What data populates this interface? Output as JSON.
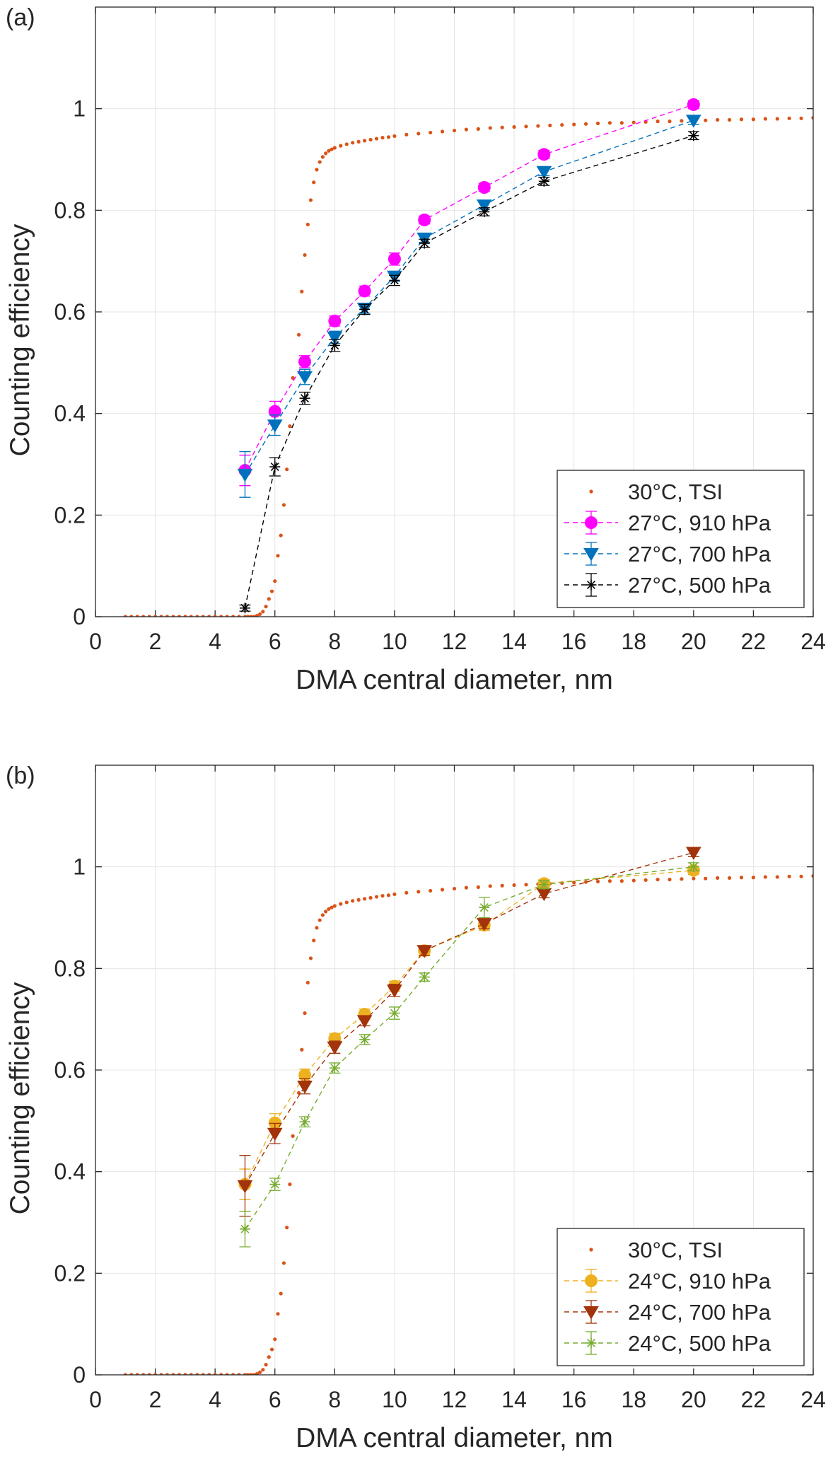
{
  "colors": {
    "tsi": "#D95319",
    "a910": "#FF00FF",
    "a700": "#0072BD",
    "a500": "#000000",
    "b910": "#EDB120",
    "b700": "#A2330B",
    "b500": "#77AC30",
    "grid": "#E6E6E6",
    "axis": "#262626"
  },
  "chart_data": [
    {
      "type": "scatter",
      "panel_label": "(a)",
      "xlabel": "DMA central diameter, nm",
      "ylabel": "Counting efficiency",
      "xlim": [
        0,
        24
      ],
      "ylim": [
        0,
        1.2
      ],
      "xticks": [
        0,
        2,
        4,
        6,
        8,
        10,
        12,
        14,
        16,
        18,
        20,
        22,
        24
      ],
      "yticks": [
        0,
        0.2,
        0.4,
        0.6,
        0.8,
        1
      ],
      "ytick_labels": [
        "0",
        "0.2",
        "0.4",
        "0.6",
        "0.8",
        "1"
      ],
      "grid": true,
      "legend_position": "bottom-right",
      "series": [
        {
          "name": "30°C, TSI",
          "style": "dots",
          "color_key": "tsi",
          "x": [
            1.0,
            1.2,
            1.4,
            1.6,
            1.8,
            2.0,
            2.2,
            2.4,
            2.6,
            2.8,
            3.0,
            3.2,
            3.4,
            3.6,
            3.8,
            4.0,
            4.2,
            4.4,
            4.6,
            4.8,
            5.0,
            5.1,
            5.2,
            5.3,
            5.4,
            5.5,
            5.6,
            5.7,
            5.8,
            5.9,
            6.0,
            6.1,
            6.2,
            6.3,
            6.4,
            6.5,
            6.6,
            6.8,
            6.9,
            7.0,
            7.1,
            7.2,
            7.3,
            7.4,
            7.5,
            7.6,
            7.7,
            7.8,
            7.9,
            8.0,
            8.2,
            8.4,
            8.6,
            8.8,
            9.0,
            9.2,
            9.4,
            9.6,
            9.8,
            10.0,
            10.4,
            10.8,
            11.2,
            11.6,
            12.0,
            12.4,
            12.8,
            13.2,
            13.6,
            14.0,
            14.4,
            14.8,
            15.2,
            15.6,
            16.0,
            16.4,
            16.8,
            17.2,
            17.6,
            18.0,
            18.4,
            18.8,
            19.2,
            19.6,
            20.0,
            20.4,
            20.8,
            21.2,
            21.6,
            22.0,
            22.4,
            22.8,
            23.2,
            23.6,
            24.0
          ],
          "y": [
            0,
            0,
            0,
            0,
            0,
            0,
            0,
            0,
            0,
            0,
            0,
            0,
            0,
            0,
            0,
            0,
            0,
            0,
            0,
            0,
            0,
            0,
            0,
            0,
            0.002,
            0.005,
            0.01,
            0.02,
            0.035,
            0.05,
            0.07,
            0.12,
            0.16,
            0.22,
            0.29,
            0.375,
            0.47,
            0.555,
            0.64,
            0.712,
            0.772,
            0.82,
            0.855,
            0.88,
            0.895,
            0.905,
            0.912,
            0.917,
            0.92,
            0.923,
            0.927,
            0.93,
            0.933,
            0.935,
            0.937,
            0.939,
            0.941,
            0.943,
            0.944,
            0.946,
            0.949,
            0.951,
            0.953,
            0.955,
            0.957,
            0.959,
            0.96,
            0.962,
            0.963,
            0.964,
            0.965,
            0.966,
            0.967,
            0.968,
            0.969,
            0.97,
            0.971,
            0.972,
            0.972,
            0.973,
            0.974,
            0.975,
            0.975,
            0.976,
            0.977,
            0.977,
            0.978,
            0.978,
            0.979,
            0.979,
            0.98,
            0.98,
            0.981,
            0.981,
            0.982
          ]
        },
        {
          "name": "27°C, 910 hPa",
          "style": "circle",
          "color_key": "a910",
          "x": [
            5,
            6,
            7,
            8,
            9,
            10,
            11,
            13,
            15,
            20
          ],
          "y": [
            0.288,
            0.404,
            0.502,
            0.582,
            0.641,
            0.704,
            0.781,
            0.845,
            0.91,
            1.008
          ],
          "err": [
            0.03,
            0.02,
            0.012,
            0.01,
            0.01,
            0.012,
            0.008,
            0.008,
            0.008,
            0.008
          ]
        },
        {
          "name": "27°C, 700 hPa",
          "style": "triangle",
          "color_key": "a700",
          "x": [
            5,
            6,
            7,
            8,
            9,
            10,
            11,
            13,
            15,
            20
          ],
          "y": [
            0.28,
            0.377,
            0.472,
            0.55,
            0.607,
            0.67,
            0.745,
            0.81,
            0.876,
            0.977
          ],
          "err": [
            0.045,
            0.02,
            0.015,
            0.012,
            0.01,
            0.01,
            0.008,
            0.008,
            0.008,
            0.008
          ]
        },
        {
          "name": "27°C, 500 hPa",
          "style": "asterisk",
          "color_key": "a500",
          "x": [
            5,
            6,
            7,
            8,
            9,
            10,
            11,
            13,
            15,
            20
          ],
          "y": [
            0.017,
            0.295,
            0.43,
            0.534,
            0.605,
            0.662,
            0.735,
            0.797,
            0.857,
            0.947
          ],
          "err": [
            0.006,
            0.018,
            0.012,
            0.012,
            0.01,
            0.01,
            0.008,
            0.008,
            0.008,
            0.008
          ]
        }
      ]
    },
    {
      "type": "scatter",
      "panel_label": "(b)",
      "xlabel": "DMA central diameter, nm",
      "ylabel": "Counting efficiency",
      "xlim": [
        0,
        24
      ],
      "ylim": [
        0,
        1.2
      ],
      "xticks": [
        0,
        2,
        4,
        6,
        8,
        10,
        12,
        14,
        16,
        18,
        20,
        22,
        24
      ],
      "yticks": [
        0,
        0.2,
        0.4,
        0.6,
        0.8,
        1
      ],
      "ytick_labels": [
        "0",
        "0.2",
        "0.4",
        "0.6",
        "0.8",
        "1"
      ],
      "grid": true,
      "legend_position": "bottom-right",
      "series": [
        {
          "name": "30°C, TSI",
          "style": "dots",
          "color_key": "tsi",
          "x": [
            1.0,
            1.2,
            1.4,
            1.6,
            1.8,
            2.0,
            2.2,
            2.4,
            2.6,
            2.8,
            3.0,
            3.2,
            3.4,
            3.6,
            3.8,
            4.0,
            4.2,
            4.4,
            4.6,
            4.8,
            5.0,
            5.1,
            5.2,
            5.3,
            5.4,
            5.5,
            5.6,
            5.7,
            5.8,
            5.9,
            6.0,
            6.1,
            6.2,
            6.3,
            6.4,
            6.5,
            6.6,
            6.8,
            6.9,
            7.0,
            7.1,
            7.2,
            7.3,
            7.4,
            7.5,
            7.6,
            7.7,
            7.8,
            7.9,
            8.0,
            8.2,
            8.4,
            8.6,
            8.8,
            9.0,
            9.2,
            9.4,
            9.6,
            9.8,
            10.0,
            10.4,
            10.8,
            11.2,
            11.6,
            12.0,
            12.4,
            12.8,
            13.2,
            13.6,
            14.0,
            14.4,
            14.8,
            15.2,
            15.6,
            16.0,
            16.4,
            16.8,
            17.2,
            17.6,
            18.0,
            18.4,
            18.8,
            19.2,
            19.6,
            20.0,
            20.4,
            20.8,
            21.2,
            21.6,
            22.0,
            22.4,
            22.8,
            23.2,
            23.6,
            24.0
          ],
          "y": [
            0,
            0,
            0,
            0,
            0,
            0,
            0,
            0,
            0,
            0,
            0,
            0,
            0,
            0,
            0,
            0,
            0,
            0,
            0,
            0,
            0,
            0,
            0,
            0,
            0.002,
            0.005,
            0.01,
            0.02,
            0.035,
            0.05,
            0.07,
            0.12,
            0.16,
            0.22,
            0.29,
            0.375,
            0.47,
            0.555,
            0.64,
            0.712,
            0.772,
            0.82,
            0.855,
            0.88,
            0.895,
            0.905,
            0.912,
            0.917,
            0.92,
            0.923,
            0.927,
            0.93,
            0.933,
            0.935,
            0.937,
            0.939,
            0.941,
            0.943,
            0.944,
            0.946,
            0.949,
            0.951,
            0.953,
            0.955,
            0.957,
            0.959,
            0.96,
            0.962,
            0.963,
            0.964,
            0.965,
            0.966,
            0.967,
            0.968,
            0.969,
            0.97,
            0.971,
            0.972,
            0.972,
            0.973,
            0.974,
            0.975,
            0.975,
            0.976,
            0.977,
            0.977,
            0.978,
            0.978,
            0.979,
            0.979,
            0.98,
            0.98,
            0.981,
            0.981,
            0.982
          ]
        },
        {
          "name": "24°C, 910 hPa",
          "style": "circle",
          "color_key": "b910",
          "x": [
            5,
            6,
            7,
            8,
            9,
            10,
            11,
            13,
            15,
            20
          ],
          "y": [
            0.375,
            0.496,
            0.59,
            0.662,
            0.71,
            0.765,
            0.835,
            0.885,
            0.967,
            0.993
          ],
          "err": [
            0.03,
            0.018,
            0.012,
            0.01,
            0.01,
            0.01,
            0.008,
            0.01,
            0.008,
            0.008
          ]
        },
        {
          "name": "24°C, 700 hPa",
          "style": "triangle",
          "color_key": "b700",
          "x": [
            5,
            6,
            7,
            8,
            9,
            10,
            11,
            13,
            15,
            20
          ],
          "y": [
            0.372,
            0.475,
            0.568,
            0.645,
            0.697,
            0.757,
            0.835,
            0.888,
            0.947,
            1.028
          ],
          "err": [
            0.06,
            0.02,
            0.015,
            0.012,
            0.01,
            0.012,
            0.01,
            0.01,
            0.008,
            0.008
          ]
        },
        {
          "name": "24°C, 500 hPa",
          "style": "asterisk",
          "color_key": "b500",
          "x": [
            5,
            6,
            7,
            8,
            9,
            10,
            11,
            13,
            15,
            20
          ],
          "y": [
            0.287,
            0.375,
            0.498,
            0.604,
            0.66,
            0.712,
            0.783,
            0.92,
            0.965,
            1.0
          ],
          "err": [
            0.035,
            0.012,
            0.01,
            0.01,
            0.01,
            0.012,
            0.008,
            0.02,
            0.008,
            0.008
          ]
        }
      ]
    }
  ]
}
